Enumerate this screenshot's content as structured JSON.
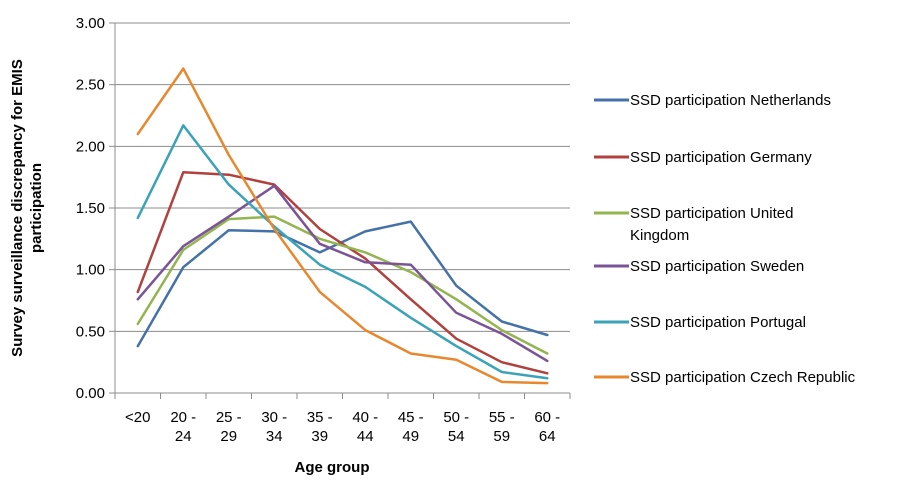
{
  "chart_data": {
    "type": "line",
    "xlabel": "Age group",
    "ylabel": [
      "Survey surveillance discrepancy for EMIS",
      "participation"
    ],
    "categories": [
      [
        "<20"
      ],
      [
        "20 -",
        "24"
      ],
      [
        "25 -",
        "29"
      ],
      [
        "30 -",
        "34"
      ],
      [
        "35 -",
        "39"
      ],
      [
        "40 -",
        "44"
      ],
      [
        "45 -",
        "49"
      ],
      [
        "50 -",
        "54"
      ],
      [
        "55 -",
        "59"
      ],
      [
        "60 -",
        "64"
      ]
    ],
    "ylim": [
      0,
      3
    ],
    "yticks": [
      "0.00",
      "0.50",
      "1.00",
      "1.50",
      "2.00",
      "2.50",
      "3.00"
    ],
    "grid": "horizontal",
    "legend": "right",
    "series": [
      {
        "name": [
          "SSD participation Netherlands"
        ],
        "color": "#4472a8",
        "values": [
          0.38,
          1.02,
          1.32,
          1.31,
          1.14,
          1.31,
          1.39,
          0.87,
          0.58,
          0.47
        ]
      },
      {
        "name": [
          "SSD participation Germany"
        ],
        "color": "#b0413e",
        "values": [
          0.82,
          1.79,
          1.77,
          1.69,
          1.33,
          1.09,
          0.76,
          0.44,
          0.25,
          0.16
        ]
      },
      {
        "name": [
          "SSD participation United",
          "Kingdom"
        ],
        "color": "#93b54f",
        "values": [
          0.56,
          1.16,
          1.41,
          1.43,
          1.25,
          1.14,
          0.98,
          0.76,
          0.51,
          0.32
        ]
      },
      {
        "name": [
          "SSD participation Sweden"
        ],
        "color": "#7a5497",
        "values": [
          0.76,
          1.19,
          1.43,
          1.68,
          1.21,
          1.06,
          1.04,
          0.65,
          0.48,
          0.26
        ]
      },
      {
        "name": [
          "SSD participation Portugal"
        ],
        "color": "#3aa3b8",
        "values": [
          1.42,
          2.17,
          1.69,
          1.35,
          1.04,
          0.86,
          0.61,
          0.38,
          0.17,
          0.12
        ]
      },
      {
        "name": [
          "SSD participation Czech Republic"
        ],
        "color": "#e8882e",
        "values": [
          2.1,
          2.63,
          1.93,
          1.33,
          0.82,
          0.51,
          0.32,
          0.27,
          0.09,
          0.08
        ]
      }
    ]
  }
}
